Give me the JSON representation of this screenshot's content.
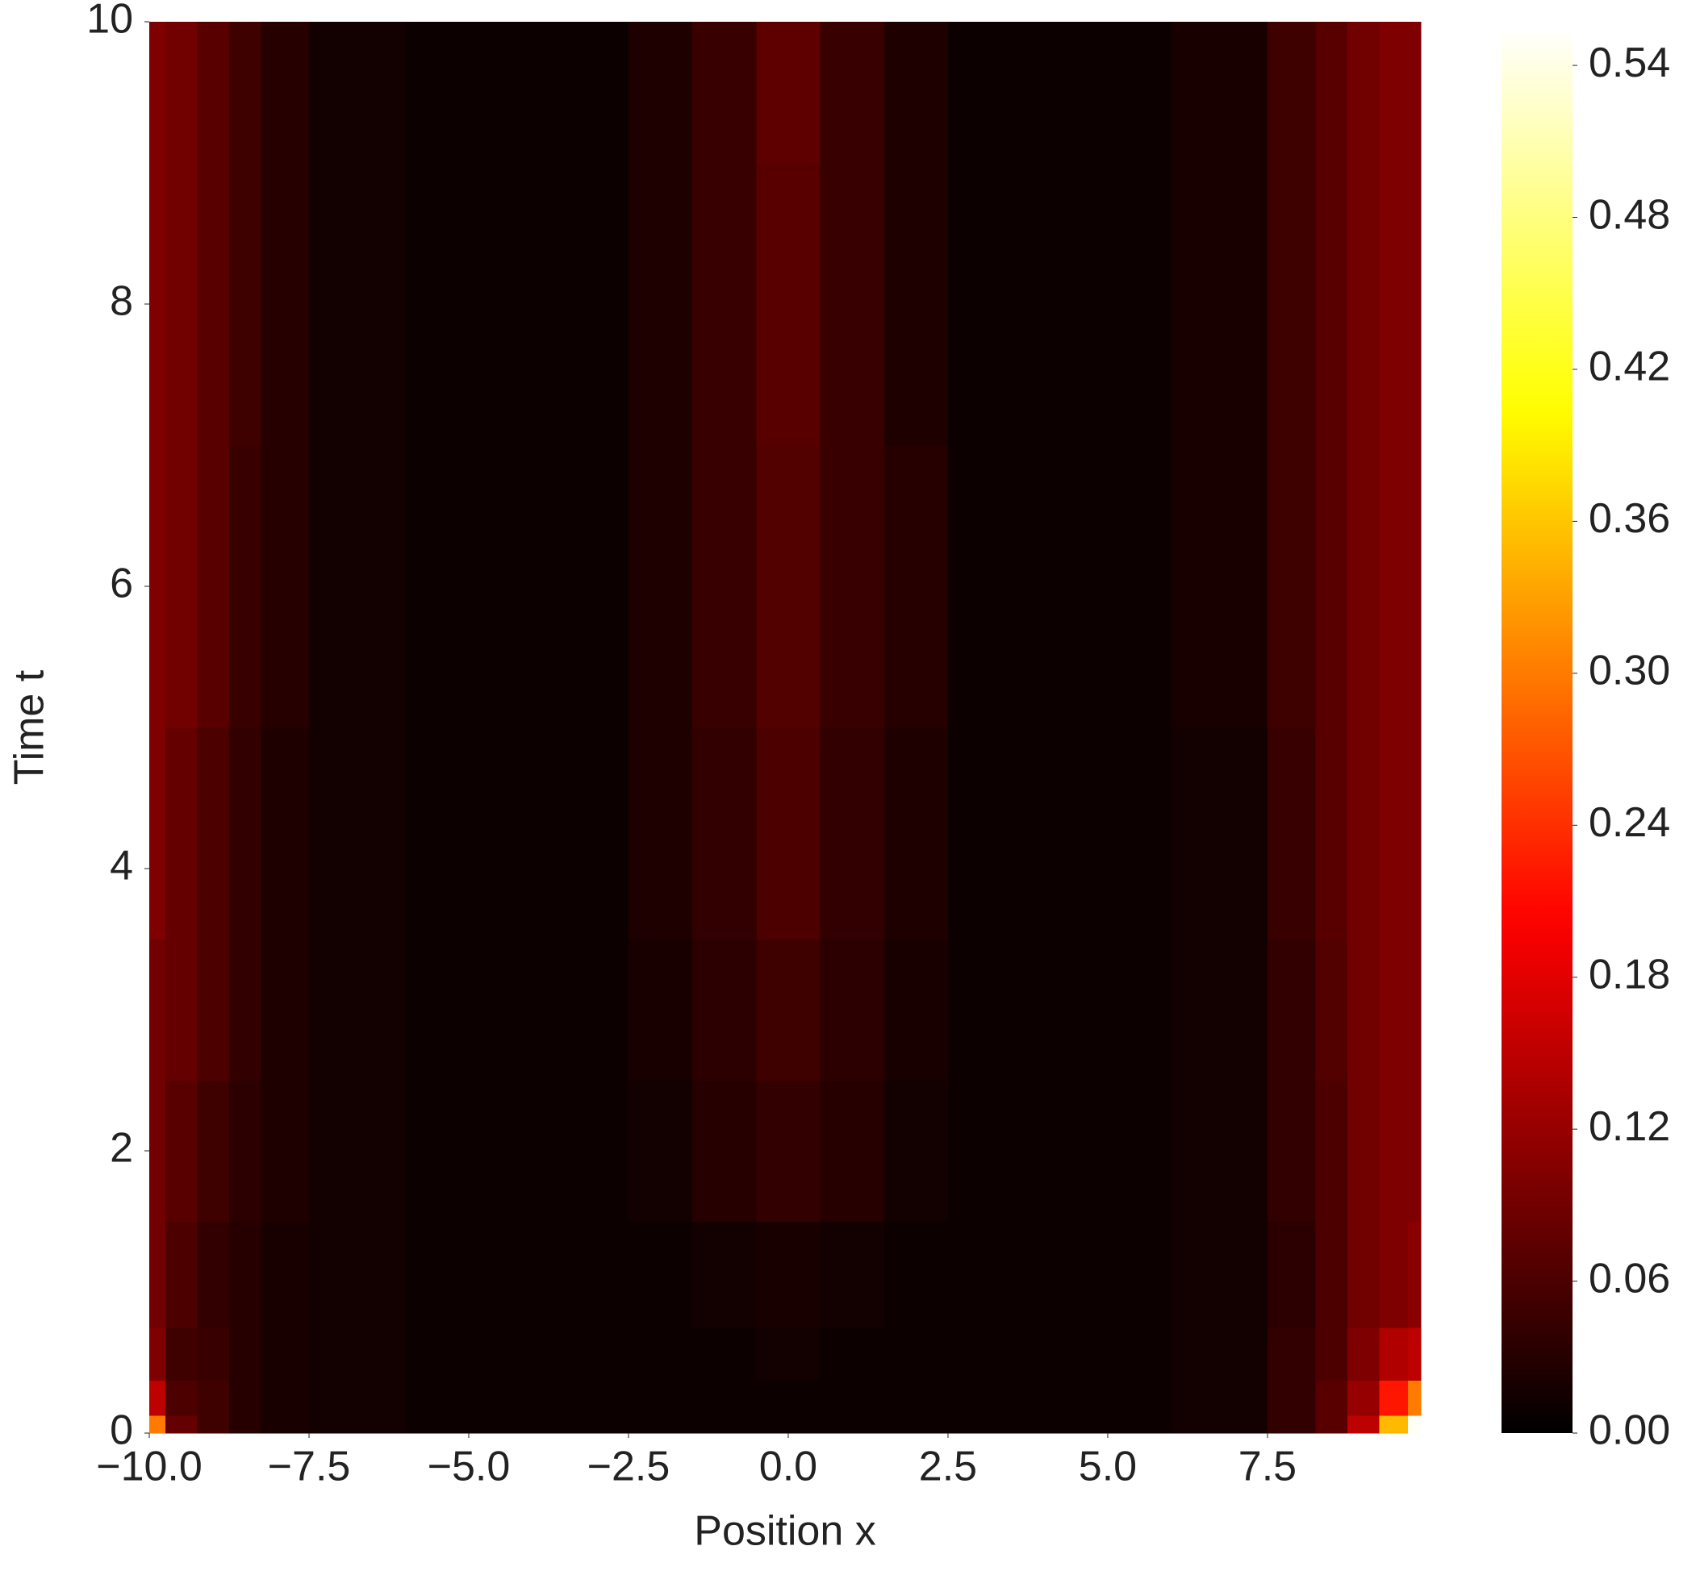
{
  "chart_data": {
    "type": "heatmap",
    "xlabel": "Position x",
    "ylabel": "Time t",
    "colormap": "hot",
    "x": [
      -10,
      -9.5,
      -9,
      -8.5,
      -8,
      -7,
      -5,
      -3,
      -2,
      -1,
      0,
      1,
      2,
      3,
      5,
      7,
      8,
      8.5,
      9,
      9.5,
      9.9
    ],
    "y": [
      0,
      0.25,
      0.5,
      1,
      2,
      3,
      4,
      6,
      8,
      10
    ],
    "z": [
      [
        0.3,
        0.08,
        0.05,
        0.03,
        0.02,
        0.015,
        0.01,
        0.01,
        0.01,
        0.01,
        0.01,
        0.01,
        0.01,
        0.01,
        0.01,
        0.015,
        0.04,
        0.07,
        0.15,
        0.35,
        0.55
      ],
      [
        0.15,
        0.06,
        0.05,
        0.03,
        0.02,
        0.015,
        0.01,
        0.01,
        0.01,
        0.01,
        0.01,
        0.01,
        0.01,
        0.01,
        0.01,
        0.015,
        0.04,
        0.07,
        0.12,
        0.22,
        0.3
      ],
      [
        0.1,
        0.05,
        0.045,
        0.03,
        0.02,
        0.015,
        0.01,
        0.01,
        0.01,
        0.01,
        0.015,
        0.01,
        0.01,
        0.01,
        0.01,
        0.015,
        0.04,
        0.06,
        0.1,
        0.14,
        0.15
      ],
      [
        0.09,
        0.06,
        0.04,
        0.03,
        0.02,
        0.015,
        0.01,
        0.01,
        0.01,
        0.015,
        0.02,
        0.015,
        0.01,
        0.01,
        0.01,
        0.015,
        0.035,
        0.06,
        0.09,
        0.1,
        0.11
      ],
      [
        0.09,
        0.07,
        0.05,
        0.035,
        0.025,
        0.015,
        0.01,
        0.01,
        0.015,
        0.03,
        0.04,
        0.03,
        0.015,
        0.01,
        0.01,
        0.015,
        0.04,
        0.06,
        0.09,
        0.1,
        0.1
      ],
      [
        0.09,
        0.08,
        0.06,
        0.04,
        0.025,
        0.015,
        0.01,
        0.01,
        0.02,
        0.035,
        0.05,
        0.035,
        0.02,
        0.01,
        0.01,
        0.015,
        0.04,
        0.065,
        0.09,
        0.1,
        0.1
      ],
      [
        0.1,
        0.08,
        0.06,
        0.04,
        0.025,
        0.015,
        0.01,
        0.01,
        0.025,
        0.04,
        0.06,
        0.04,
        0.025,
        0.01,
        0.01,
        0.015,
        0.045,
        0.07,
        0.09,
        0.1,
        0.1
      ],
      [
        0.1,
        0.09,
        0.07,
        0.045,
        0.03,
        0.015,
        0.01,
        0.01,
        0.025,
        0.045,
        0.065,
        0.045,
        0.03,
        0.01,
        0.01,
        0.02,
        0.05,
        0.07,
        0.09,
        0.1,
        0.1
      ],
      [
        0.1,
        0.09,
        0.07,
        0.05,
        0.03,
        0.015,
        0.01,
        0.01,
        0.025,
        0.045,
        0.07,
        0.045,
        0.025,
        0.01,
        0.01,
        0.02,
        0.05,
        0.07,
        0.09,
        0.1,
        0.1
      ],
      [
        0.1,
        0.09,
        0.07,
        0.05,
        0.03,
        0.015,
        0.01,
        0.01,
        0.025,
        0.045,
        0.075,
        0.045,
        0.025,
        0.01,
        0.01,
        0.02,
        0.05,
        0.07,
        0.09,
        0.1,
        0.1
      ]
    ],
    "xlim": [
      -10,
      9.9
    ],
    "ylim": [
      0,
      10
    ],
    "zlim": [
      0,
      0.555
    ],
    "xticks": [
      {
        "value": -10,
        "label": "−10.0"
      },
      {
        "value": -7.5,
        "label": "−7.5"
      },
      {
        "value": -5,
        "label": "−5.0"
      },
      {
        "value": -2.5,
        "label": "−2.5"
      },
      {
        "value": 0,
        "label": "0.0"
      },
      2.5,
      {
        "value": 5,
        "label": "5.0"
      },
      7.5
    ],
    "yticks": [
      0,
      2,
      4,
      6,
      8,
      10
    ],
    "zticks": [
      {
        "value": 0,
        "label": "0.00"
      },
      0.06,
      0.12,
      0.18,
      0.24,
      {
        "value": 0.3,
        "label": "0.30"
      },
      0.36,
      0.42,
      0.48,
      0.54
    ]
  }
}
